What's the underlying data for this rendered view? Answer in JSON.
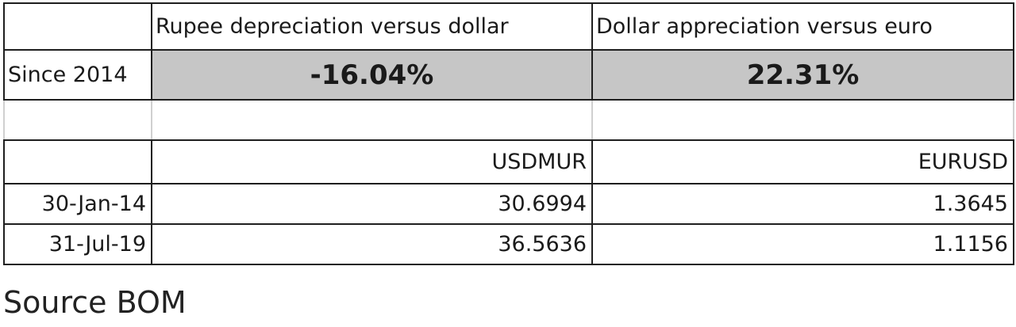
{
  "table": {
    "headers": [
      "Rupee depreciation versus dollar",
      "Dollar appreciation versus euro"
    ],
    "summary": {
      "label": "Since 2014",
      "values": [
        "-16.04%",
        "22.31%"
      ]
    },
    "series_headers": [
      "USDMUR",
      "EURUSD"
    ],
    "rows": [
      {
        "date": "30-Jan-14",
        "values": [
          30.6994,
          1.3645
        ]
      },
      {
        "date": "31-Jul-19",
        "values": [
          36.5636,
          1.1156
        ]
      }
    ]
  },
  "source": "Source BOM"
}
